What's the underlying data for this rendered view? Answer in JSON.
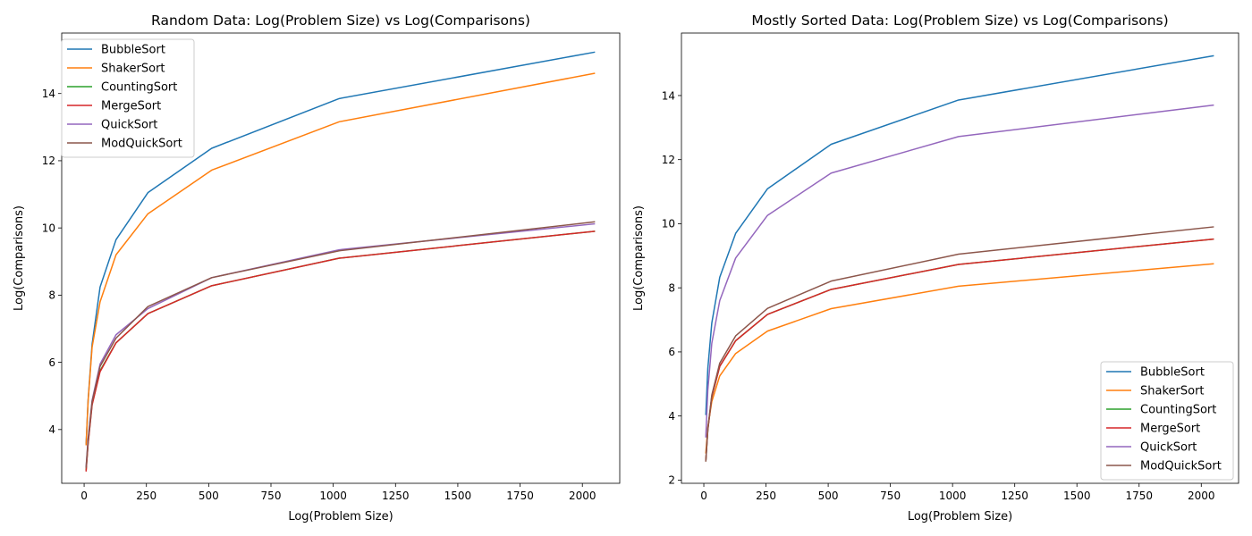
{
  "chart_data": [
    {
      "type": "line",
      "title": "Random Data: Log(Problem Size) vs Log(Comparisons)",
      "xlabel": "Log(Problem Size)",
      "ylabel": "Log(Comparisons)",
      "xlim": [
        -90,
        2150
      ],
      "ylim": [
        2.4,
        15.8
      ],
      "xticks": [
        0,
        250,
        500,
        750,
        1000,
        1250,
        1500,
        1750,
        2000
      ],
      "yticks": [
        4,
        6,
        8,
        10,
        12,
        14
      ],
      "legend": "top-left",
      "grid": false,
      "x": [
        8,
        16,
        32,
        64,
        128,
        256,
        512,
        1024,
        2048
      ],
      "series": [
        {
          "name": "BubbleSort",
          "color": "#1f77b4",
          "values": [
            3.58,
            4.87,
            6.54,
            8.24,
            9.65,
            11.05,
            12.37,
            13.85,
            15.23
          ]
        },
        {
          "name": "ShakerSort",
          "color": "#ff7f0e",
          "values": [
            3.55,
            4.85,
            6.45,
            7.8,
            9.2,
            10.42,
            11.72,
            13.16,
            14.6
          ]
        },
        {
          "name": "CountingSort",
          "color": "#2ca02c",
          "values": [
            2.8,
            3.6,
            4.75,
            5.75,
            6.58,
            7.45,
            8.28,
            9.1,
            9.9
          ]
        },
        {
          "name": "MergeSort",
          "color": "#d62728",
          "values": [
            2.77,
            3.58,
            4.73,
            5.72,
            6.58,
            7.45,
            8.28,
            9.1,
            9.9
          ]
        },
        {
          "name": "QuickSort",
          "color": "#9467bd",
          "values": [
            2.9,
            3.72,
            4.87,
            5.95,
            6.82,
            7.6,
            8.52,
            9.35,
            10.12
          ]
        },
        {
          "name": "ModQuickSort",
          "color": "#8c564b",
          "values": [
            2.88,
            3.7,
            4.83,
            5.88,
            6.72,
            7.66,
            8.52,
            9.32,
            10.18
          ]
        }
      ]
    },
    {
      "type": "line",
      "title": "Mostly Sorted Data: Log(Problem Size) vs Log(Comparisons)",
      "xlabel": "Log(Problem Size)",
      "ylabel": "Log(Comparisons)",
      "xlim": [
        -90,
        2150
      ],
      "ylim": [
        1.9,
        15.95
      ],
      "xticks": [
        0,
        250,
        500,
        750,
        1000,
        1250,
        1500,
        1750,
        2000
      ],
      "yticks": [
        2,
        4,
        6,
        8,
        10,
        12,
        14
      ],
      "legend": "bottom-right",
      "grid": false,
      "x": [
        8,
        16,
        32,
        64,
        128,
        256,
        512,
        1024,
        2048
      ],
      "series": [
        {
          "name": "BubbleSort",
          "color": "#1f77b4",
          "values": [
            4.05,
            5.48,
            6.9,
            8.33,
            9.7,
            11.09,
            12.48,
            13.86,
            15.24
          ]
        },
        {
          "name": "ShakerSort",
          "color": "#ff7f0e",
          "values": [
            2.85,
            3.65,
            4.45,
            5.25,
            5.95,
            6.65,
            7.35,
            8.05,
            8.75
          ]
        },
        {
          "name": "CountingSort",
          "color": "#2ca02c",
          "values": [
            2.6,
            3.56,
            4.6,
            5.55,
            6.35,
            7.17,
            7.95,
            8.73,
            9.52
          ]
        },
        {
          "name": "MergeSort",
          "color": "#d62728",
          "values": [
            2.6,
            3.56,
            4.6,
            5.55,
            6.35,
            7.17,
            7.95,
            8.73,
            9.52
          ]
        },
        {
          "name": "QuickSort",
          "color": "#9467bd",
          "values": [
            3.35,
            4.8,
            6.27,
            7.6,
            8.93,
            10.26,
            11.58,
            12.72,
            13.7
          ]
        },
        {
          "name": "ModQuickSort",
          "color": "#8c564b",
          "values": [
            2.6,
            3.6,
            4.65,
            5.65,
            6.5,
            7.36,
            8.21,
            9.05,
            9.9
          ]
        }
      ]
    }
  ]
}
